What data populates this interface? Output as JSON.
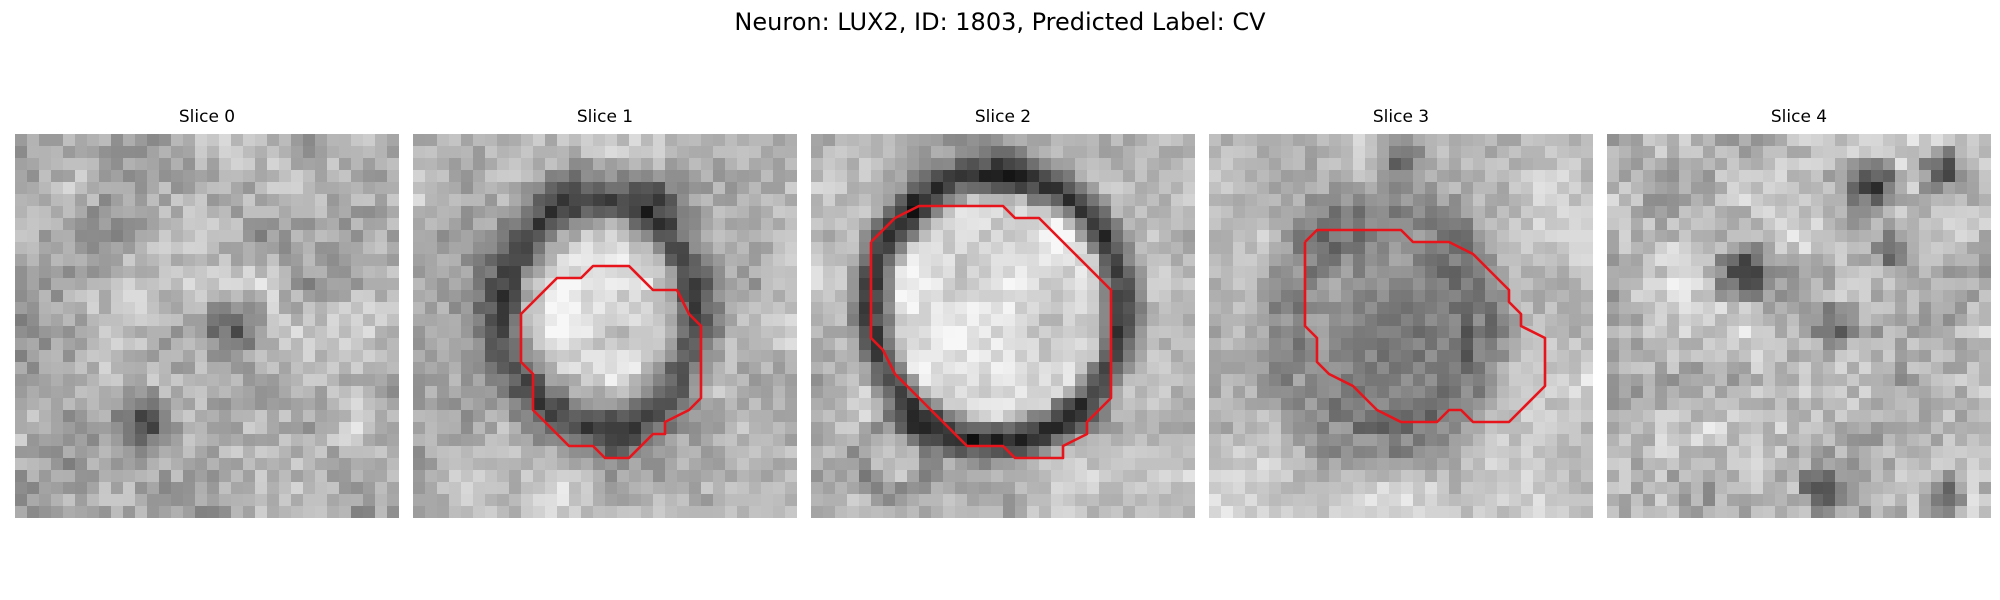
{
  "figure": {
    "title": "Neuron: LUX2, ID: 1803, Predicted Label: CV",
    "contour_color": "#e8141b",
    "panels": [
      {
        "title": "Slice 0",
        "has_contour": false,
        "seed": 11
      },
      {
        "title": "Slice 1",
        "has_contour": true,
        "seed": 23
      },
      {
        "title": "Slice 2",
        "has_contour": true,
        "seed": 37
      },
      {
        "title": "Slice 3",
        "has_contour": true,
        "seed": 53
      },
      {
        "title": "Slice 4",
        "has_contour": false,
        "seed": 71
      }
    ]
  }
}
